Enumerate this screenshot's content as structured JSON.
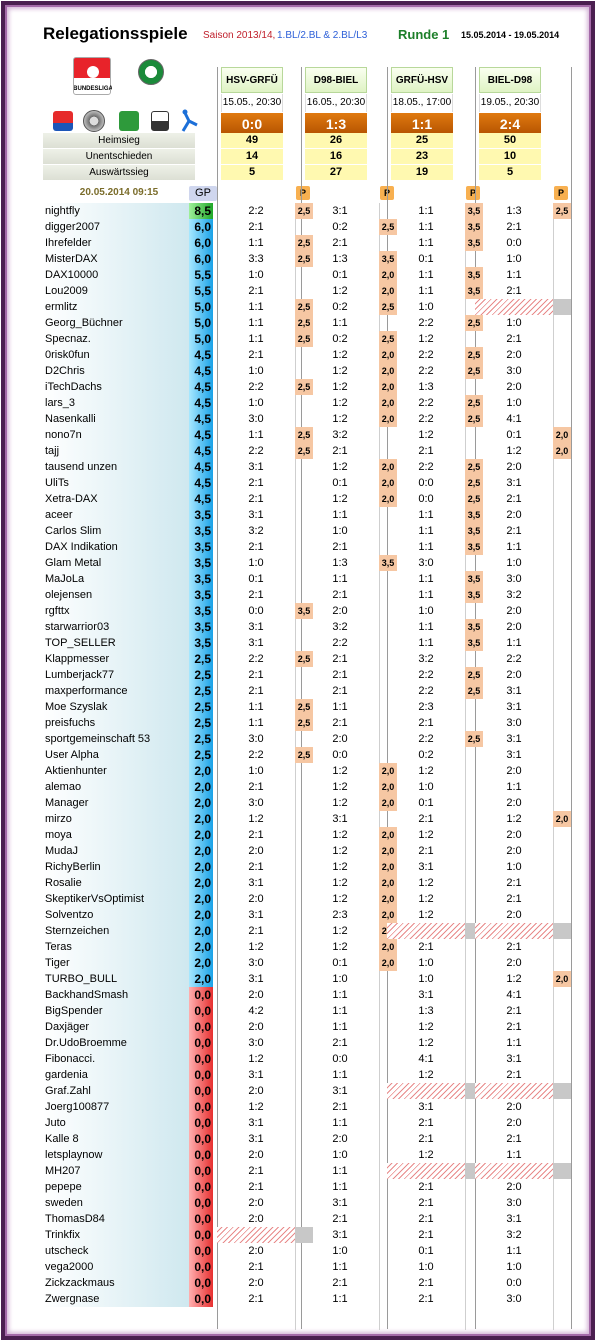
{
  "header": {
    "title": "Relegationsspiele",
    "season": "Saison 2013/14,",
    "leagues": "1.BL/2.BL & 2.BL/L3",
    "round": "Runde 1",
    "date_range": "15.05.2014 - 19.05.2014",
    "stamp": "20.05.2014 09:15",
    "gp_label": "GP",
    "p_label": "P"
  },
  "logos": [
    "bundesliga-logo",
    "dfb-logo",
    "2bundesliga-logo",
    "ball-logo",
    "green-badge-logo",
    "3liga-logo",
    "blue-kicker-logo"
  ],
  "stats_labels": [
    "Heimsieg",
    "Unentschieden",
    "Auswärtssieg"
  ],
  "matches": [
    {
      "name": "HSV-GRFÜ",
      "date": "15.05., 20:30",
      "result": "0:0",
      "heimsieg": "49",
      "unentschieden": "14",
      "auswaertssieg": "5"
    },
    {
      "name": "D98-BIEL",
      "date": "16.05., 20:30",
      "result": "1:3",
      "heimsieg": "26",
      "unentschieden": "16",
      "auswaertssieg": "27"
    },
    {
      "name": "GRFÜ-HSV",
      "date": "18.05., 17:00",
      "result": "1:1",
      "heimsieg": "25",
      "unentschieden": "23",
      "auswaertssieg": "19"
    },
    {
      "name": "BIEL-D98",
      "date": "19.05., 20:30",
      "result": "2:4",
      "heimsieg": "50",
      "unentschieden": "10",
      "auswaertssieg": "5"
    }
  ],
  "players": [
    [
      "nightfly",
      "8,5",
      "2:2",
      "2,5",
      "3:1",
      "",
      "1:1",
      "3,5",
      "1:3",
      "2,5"
    ],
    [
      "digger2007",
      "6,0",
      "2:1",
      "",
      "0:2",
      "2,5",
      "1:1",
      "3,5",
      "2:1",
      ""
    ],
    [
      "Ihrefelder",
      "6,0",
      "1:1",
      "2,5",
      "2:1",
      "",
      "1:1",
      "3,5",
      "0:0",
      ""
    ],
    [
      "MisterDAX",
      "6,0",
      "3:3",
      "2,5",
      "1:3",
      "3,5",
      "0:1",
      "",
      "1:0",
      ""
    ],
    [
      "DAX10000",
      "5,5",
      "1:0",
      "",
      "0:1",
      "2,0",
      "1:1",
      "3,5",
      "1:1",
      ""
    ],
    [
      "Lou2009",
      "5,5",
      "2:1",
      "",
      "1:2",
      "2,0",
      "1:1",
      "3,5",
      "2:1",
      ""
    ],
    [
      "ermlitz",
      "5,0",
      "1:1",
      "2,5",
      "0:2",
      "2,5",
      "1:0",
      "",
      "#",
      ""
    ],
    [
      "Georg_Büchner",
      "5,0",
      "1:1",
      "2,5",
      "1:1",
      "",
      "2:2",
      "2,5",
      "1:0",
      ""
    ],
    [
      "Specnaz.",
      "5,0",
      "1:1",
      "2,5",
      "0:2",
      "2,5",
      "1:2",
      "",
      "2:1",
      ""
    ],
    [
      "0risk0fun",
      "4,5",
      "2:1",
      "",
      "1:2",
      "2,0",
      "2:2",
      "2,5",
      "2:0",
      ""
    ],
    [
      "D2Chris",
      "4,5",
      "1:0",
      "",
      "1:2",
      "2,0",
      "2:2",
      "2,5",
      "3:0",
      ""
    ],
    [
      "iTechDachs",
      "4,5",
      "2:2",
      "2,5",
      "1:2",
      "2,0",
      "1:3",
      "",
      "2:0",
      ""
    ],
    [
      "lars_3",
      "4,5",
      "1:0",
      "",
      "1:2",
      "2,0",
      "2:2",
      "2,5",
      "1:0",
      ""
    ],
    [
      "Nasenkalli",
      "4,5",
      "3:0",
      "",
      "1:2",
      "2,0",
      "2:2",
      "2,5",
      "4:1",
      ""
    ],
    [
      "nono7n",
      "4,5",
      "1:1",
      "2,5",
      "3:2",
      "",
      "1:2",
      "",
      "0:1",
      "2,0"
    ],
    [
      "tajj",
      "4,5",
      "2:2",
      "2,5",
      "2:1",
      "",
      "2:1",
      "",
      "1:2",
      "2,0"
    ],
    [
      "tausend unzen",
      "4,5",
      "3:1",
      "",
      "1:2",
      "2,0",
      "2:2",
      "2,5",
      "2:0",
      ""
    ],
    [
      "UliTs",
      "4,5",
      "2:1",
      "",
      "0:1",
      "2,0",
      "0:0",
      "2,5",
      "3:1",
      ""
    ],
    [
      "Xetra-DAX",
      "4,5",
      "2:1",
      "",
      "1:2",
      "2,0",
      "0:0",
      "2,5",
      "2:1",
      ""
    ],
    [
      "aceer",
      "3,5",
      "3:1",
      "",
      "1:1",
      "",
      "1:1",
      "3,5",
      "2:0",
      ""
    ],
    [
      "Carlos Slim",
      "3,5",
      "3:2",
      "",
      "1:0",
      "",
      "1:1",
      "3,5",
      "2:1",
      ""
    ],
    [
      "DAX Indikation",
      "3,5",
      "2:1",
      "",
      "2:1",
      "",
      "1:1",
      "3,5",
      "1:1",
      ""
    ],
    [
      "Glam Metal",
      "3,5",
      "1:0",
      "",
      "1:3",
      "3,5",
      "3:0",
      "",
      "1:0",
      ""
    ],
    [
      "MaJoLa",
      "3,5",
      "0:1",
      "",
      "1:1",
      "",
      "1:1",
      "3,5",
      "3:0",
      ""
    ],
    [
      "olejensen",
      "3,5",
      "2:1",
      "",
      "2:1",
      "",
      "1:1",
      "3,5",
      "3:2",
      ""
    ],
    [
      "rgfttx",
      "3,5",
      "0:0",
      "3,5",
      "2:0",
      "",
      "1:0",
      "",
      "2:0",
      ""
    ],
    [
      "starwarrior03",
      "3,5",
      "3:1",
      "",
      "3:2",
      "",
      "1:1",
      "3,5",
      "2:0",
      ""
    ],
    [
      "TOP_SELLER",
      "3,5",
      "3:1",
      "",
      "2:2",
      "",
      "1:1",
      "3,5",
      "1:1",
      ""
    ],
    [
      "Klappmesser",
      "2,5",
      "2:2",
      "2,5",
      "2:1",
      "",
      "3:2",
      "",
      "2:2",
      ""
    ],
    [
      "Lumberjack77",
      "2,5",
      "2:1",
      "",
      "2:1",
      "",
      "2:2",
      "2,5",
      "2:0",
      ""
    ],
    [
      "maxperformance",
      "2,5",
      "2:1",
      "",
      "2:1",
      "",
      "2:2",
      "2,5",
      "3:1",
      ""
    ],
    [
      "Moe Szyslak",
      "2,5",
      "1:1",
      "2,5",
      "1:1",
      "",
      "2:3",
      "",
      "3:1",
      ""
    ],
    [
      "preisfuchs",
      "2,5",
      "1:1",
      "2,5",
      "2:1",
      "",
      "2:1",
      "",
      "3:0",
      ""
    ],
    [
      "sportgemeinschaft 53",
      "2,5",
      "3:0",
      "",
      "2:0",
      "",
      "2:2",
      "2,5",
      "3:1",
      ""
    ],
    [
      "User Alpha",
      "2,5",
      "2:2",
      "2,5",
      "0:0",
      "",
      "0:2",
      "",
      "3:1",
      ""
    ],
    [
      "Aktienhunter",
      "2,0",
      "1:0",
      "",
      "1:2",
      "2,0",
      "1:2",
      "",
      "2:0",
      ""
    ],
    [
      "alemao",
      "2,0",
      "2:1",
      "",
      "1:2",
      "2,0",
      "1:0",
      "",
      "1:1",
      ""
    ],
    [
      "Manager",
      "2,0",
      "3:0",
      "",
      "1:2",
      "2,0",
      "0:1",
      "",
      "2:0",
      ""
    ],
    [
      "mirzo",
      "2,0",
      "1:2",
      "",
      "3:1",
      "",
      "2:1",
      "",
      "1:2",
      "2,0"
    ],
    [
      "moya",
      "2,0",
      "2:1",
      "",
      "1:2",
      "2,0",
      "1:2",
      "",
      "2:0",
      ""
    ],
    [
      "MudaJ",
      "2,0",
      "2:0",
      "",
      "1:2",
      "2,0",
      "2:1",
      "",
      "2:0",
      ""
    ],
    [
      "RichyBerlin",
      "2,0",
      "2:1",
      "",
      "1:2",
      "2,0",
      "3:1",
      "",
      "1:0",
      ""
    ],
    [
      "Rosalie",
      "2,0",
      "3:1",
      "",
      "1:2",
      "2,0",
      "1:2",
      "",
      "2:1",
      ""
    ],
    [
      "SkeptikerVsOptimist",
      "2,0",
      "2:0",
      "",
      "1:2",
      "2,0",
      "1:2",
      "",
      "2:1",
      ""
    ],
    [
      "Solventzo",
      "2,0",
      "3:1",
      "",
      "2:3",
      "2,0",
      "1:2",
      "",
      "2:0",
      ""
    ],
    [
      "Sternzeichen",
      "2,0",
      "2:1",
      "",
      "1:2",
      "2,0",
      "#",
      "",
      "#",
      ""
    ],
    [
      "Teras",
      "2,0",
      "1:2",
      "",
      "1:2",
      "2,0",
      "2:1",
      "",
      "2:1",
      ""
    ],
    [
      "Tiger",
      "2,0",
      "3:0",
      "",
      "0:1",
      "2,0",
      "1:0",
      "",
      "2:0",
      ""
    ],
    [
      "TURBO_BULL",
      "2,0",
      "3:1",
      "",
      "1:0",
      "",
      "1:0",
      "",
      "1:2",
      "2,0"
    ],
    [
      "BackhandSmash",
      "0,0",
      "2:0",
      "",
      "1:1",
      "",
      "3:1",
      "",
      "4:1",
      ""
    ],
    [
      "BigSpender",
      "0,0",
      "4:2",
      "",
      "1:1",
      "",
      "1:3",
      "",
      "2:1",
      ""
    ],
    [
      "Daxjäger",
      "0,0",
      "2:0",
      "",
      "1:1",
      "",
      "1:2",
      "",
      "2:1",
      ""
    ],
    [
      "Dr.UdoBroemme",
      "0,0",
      "3:0",
      "",
      "2:1",
      "",
      "1:2",
      "",
      "1:1",
      ""
    ],
    [
      "Fibonacci.",
      "0,0",
      "1:2",
      "",
      "0:0",
      "",
      "4:1",
      "",
      "3:1",
      ""
    ],
    [
      "gardenia",
      "0,0",
      "3:1",
      "",
      "1:1",
      "",
      "1:2",
      "",
      "2:1",
      ""
    ],
    [
      "Graf.Zahl",
      "0,0",
      "2:0",
      "",
      "3:1",
      "",
      "#",
      "",
      "#",
      ""
    ],
    [
      "Joerg100877",
      "0,0",
      "1:2",
      "",
      "2:1",
      "",
      "3:1",
      "",
      "2:0",
      ""
    ],
    [
      "Juto",
      "0,0",
      "3:1",
      "",
      "1:1",
      "",
      "2:1",
      "",
      "2:0",
      ""
    ],
    [
      "Kalle 8",
      "0,0",
      "3:1",
      "",
      "2:0",
      "",
      "2:1",
      "",
      "2:1",
      ""
    ],
    [
      "letsplaynow",
      "0,0",
      "2:0",
      "",
      "1:0",
      "",
      "1:2",
      "",
      "1:1",
      ""
    ],
    [
      "MH207",
      "0,0",
      "2:1",
      "",
      "1:1",
      "",
      "#",
      "",
      "#",
      ""
    ],
    [
      "pepepe",
      "0,0",
      "2:1",
      "",
      "1:1",
      "",
      "2:1",
      "",
      "2:0",
      ""
    ],
    [
      "sweden",
      "0,0",
      "2:0",
      "",
      "3:1",
      "",
      "2:1",
      "",
      "3:0",
      ""
    ],
    [
      "ThomasD84",
      "0,0",
      "2:0",
      "",
      "2:1",
      "",
      "2:1",
      "",
      "3:1",
      ""
    ],
    [
      "Trinkfix",
      "0,0",
      "#",
      "",
      "3:1",
      "",
      "2:1",
      "",
      "3:2",
      ""
    ],
    [
      "utscheck",
      "0,0",
      "2:0",
      "",
      "1:0",
      "",
      "0:1",
      "",
      "1:1",
      ""
    ],
    [
      "vega2000",
      "0,0",
      "2:1",
      "",
      "1:1",
      "",
      "1:0",
      "",
      "1:0",
      ""
    ],
    [
      "Zickzackmaus",
      "0,0",
      "2:0",
      "",
      "2:1",
      "",
      "2:1",
      "",
      "0:0",
      ""
    ],
    [
      "Zwergnase",
      "0,0",
      "2:1",
      "",
      "1:1",
      "",
      "2:1",
      "",
      "3:0",
      ""
    ]
  ]
}
